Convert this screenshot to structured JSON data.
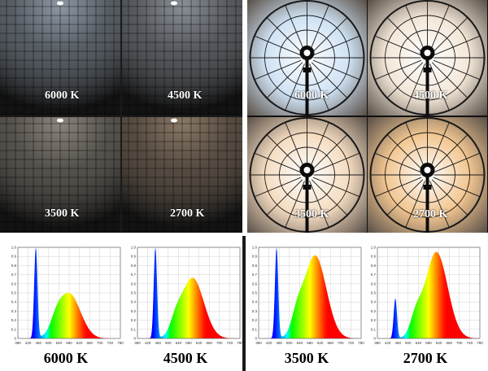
{
  "wall_photos": [
    {
      "label": "6000 K",
      "tone": "#8d98a4"
    },
    {
      "label": "4500 K",
      "tone": "#8a8f97"
    },
    {
      "label": "3500 K",
      "tone": "#8b857c"
    },
    {
      "label": "2700 K",
      "tone": "#8a7866"
    }
  ],
  "reflector_photos": [
    {
      "label": "6000 K",
      "tone": "#cfe2f4"
    },
    {
      "label": "4500 K",
      "tone": "#f3e7d8"
    },
    {
      "label": "3500 K",
      "tone": "#f5dcc1"
    },
    {
      "label": "2700 K",
      "tone": "#f2c691"
    }
  ],
  "spectra": [
    {
      "label": "6000 K",
      "blue_peak": 1.0,
      "main_peak": 0.52,
      "main_center": 580,
      "valley": 0.18
    },
    {
      "label": "4500 K",
      "blue_peak": 1.0,
      "main_peak": 0.7,
      "main_center": 595,
      "valley": 0.18
    },
    {
      "label": "3500 K",
      "blue_peak": 1.0,
      "main_peak": 0.96,
      "main_center": 600,
      "valley": 0.22
    },
    {
      "label": "2700 K",
      "blue_peak": 0.44,
      "main_peak": 1.0,
      "main_center": 610,
      "valley": 0.12
    }
  ],
  "chart_axes": {
    "y_ticks": [
      "0",
      "0.1",
      "0.2",
      "0.3",
      "0.4",
      "0.5",
      "0.6",
      "0.7",
      "0.8",
      "0.9",
      "1.0"
    ],
    "x_ticks": [
      "380",
      "420",
      "460",
      "500",
      "540",
      "580",
      "620",
      "660",
      "700",
      "740",
      "780"
    ]
  }
}
